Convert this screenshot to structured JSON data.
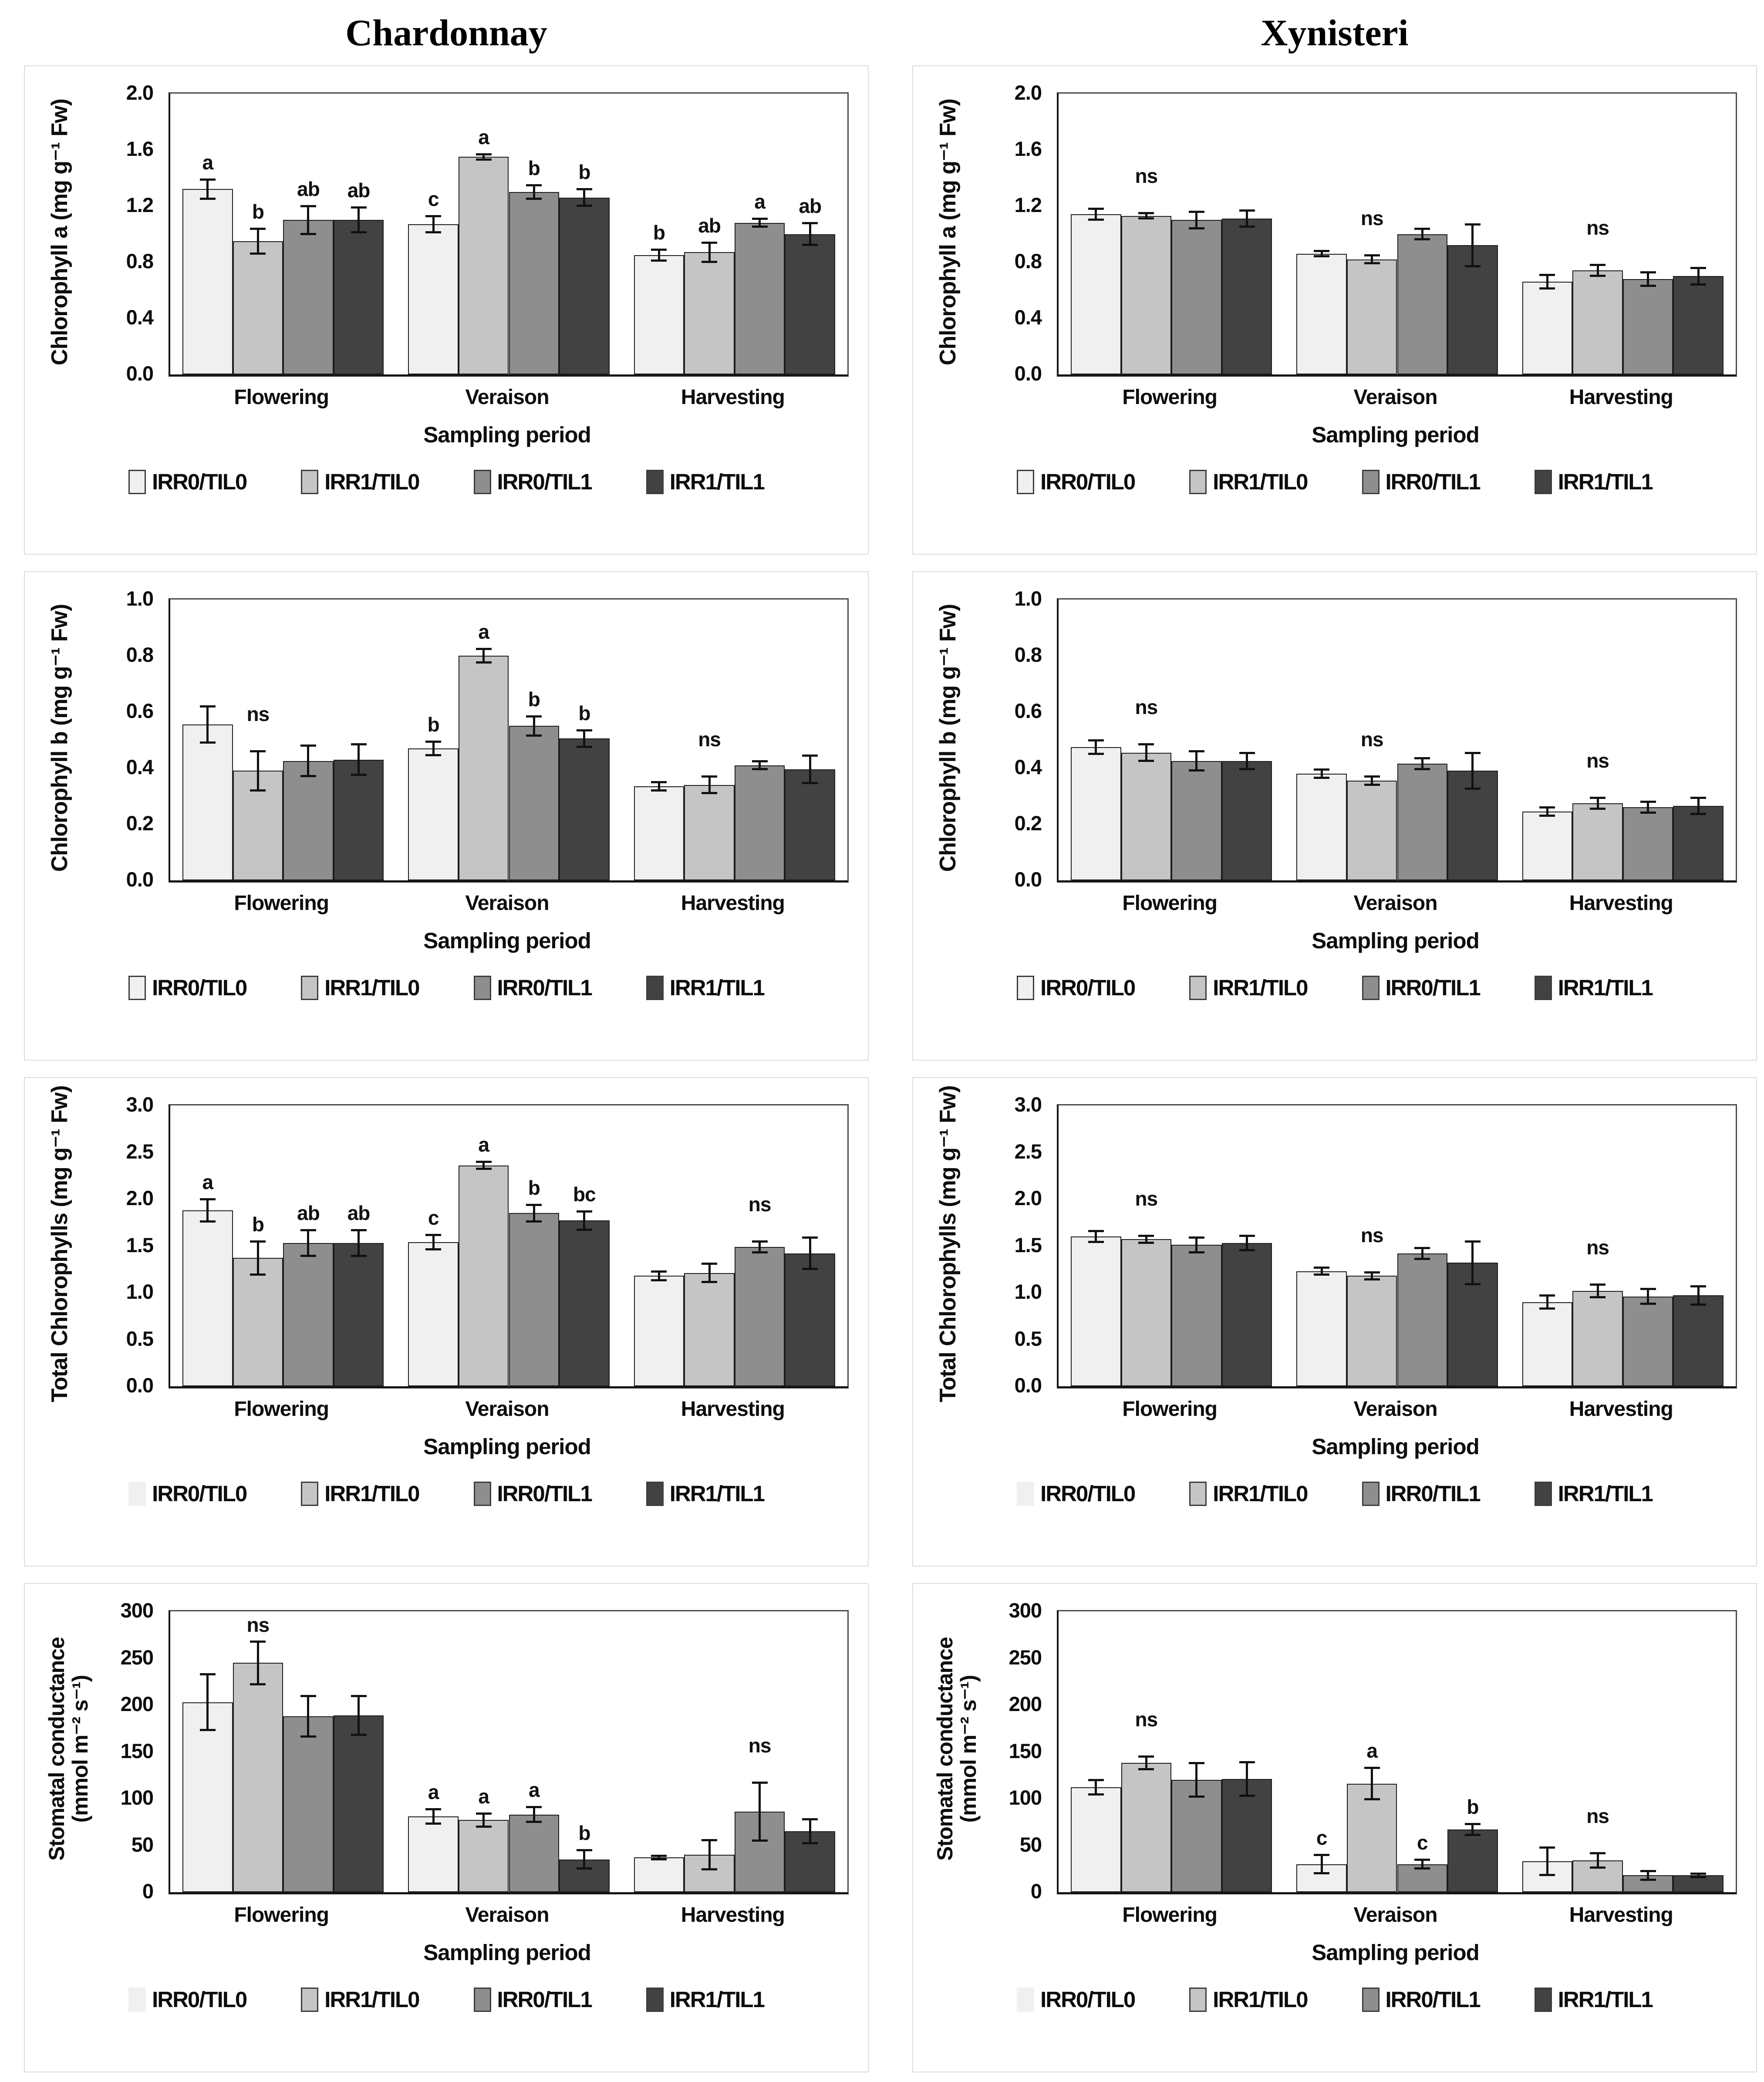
{
  "page": {
    "col_titles": [
      "Chardonnay",
      "Xynisteri"
    ]
  },
  "bar_colors": [
    "#f0f0f0",
    "#c5c5c5",
    "#8e8e8e",
    "#424242"
  ],
  "chart_data": [
    {
      "type": "bar",
      "variety": "Chardonnay",
      "ylabel": "Chlorophyll a (mg g⁻¹ Fw)",
      "xlabel": "Sampling period",
      "ylim": [
        0,
        2.0
      ],
      "ytick_step": 0.4,
      "ytick_decimals": 1,
      "categories": [
        "Flowering",
        "Veraison",
        "Harvesting"
      ],
      "series": [
        {
          "name": "IRR0/TIL0",
          "values": [
            1.32,
            1.07,
            0.85
          ],
          "errors": [
            0.07,
            0.06,
            0.04
          ]
        },
        {
          "name": "IRR1/TIL0",
          "values": [
            0.95,
            1.55,
            0.87
          ],
          "errors": [
            0.09,
            0.02,
            0.07
          ]
        },
        {
          "name": "IRR0/TIL1",
          "values": [
            1.1,
            1.3,
            1.08
          ],
          "errors": [
            0.1,
            0.05,
            0.03
          ]
        },
        {
          "name": "IRR1/TIL1",
          "values": [
            1.1,
            1.26,
            1.0
          ],
          "errors": [
            0.09,
            0.06,
            0.08
          ]
        }
      ],
      "sig": [
        {
          "letters": [
            "a",
            "b",
            "ab",
            "ab"
          ]
        },
        {
          "letters": [
            "c",
            "a",
            "b",
            "b"
          ]
        },
        {
          "letters": [
            "b",
            "ab",
            "a",
            "ab"
          ]
        }
      ],
      "legend_first_no_border": false
    },
    {
      "type": "bar",
      "variety": "Xynisteri",
      "ylabel": "Chlorophyll a (mg g⁻¹ Fw)",
      "xlabel": "Sampling period",
      "ylim": [
        0,
        2.0
      ],
      "ytick_step": 0.4,
      "ytick_decimals": 1,
      "categories": [
        "Flowering",
        "Veraison",
        "Harvesting"
      ],
      "series": [
        {
          "name": "IRR0/TIL0",
          "values": [
            1.14,
            0.86,
            0.66
          ],
          "errors": [
            0.04,
            0.02,
            0.05
          ]
        },
        {
          "name": "IRR1/TIL0",
          "values": [
            1.13,
            0.82,
            0.74
          ],
          "errors": [
            0.02,
            0.03,
            0.04
          ]
        },
        {
          "name": "IRR0/TIL1",
          "values": [
            1.1,
            1.0,
            0.68
          ],
          "errors": [
            0.06,
            0.04,
            0.05
          ]
        },
        {
          "name": "IRR1/TIL1",
          "values": [
            1.11,
            0.92,
            0.7
          ],
          "errors": [
            0.06,
            0.15,
            0.06
          ]
        }
      ],
      "sig": [
        {
          "ns": 1
        },
        {
          "ns": 1
        },
        {
          "ns": 1
        }
      ],
      "legend_first_no_border": false
    },
    {
      "type": "bar",
      "variety": "Chardonnay",
      "ylabel": "Chlorophyll b (mg g⁻¹ Fw)",
      "xlabel": "Sampling period",
      "ylim": [
        0,
        1.0
      ],
      "ytick_step": 0.2,
      "ytick_decimals": 1,
      "categories": [
        "Flowering",
        "Veraison",
        "Harvesting"
      ],
      "series": [
        {
          "name": "IRR0/TIL0",
          "values": [
            0.555,
            0.47,
            0.335
          ],
          "errors": [
            0.065,
            0.025,
            0.015
          ]
        },
        {
          "name": "IRR1/TIL0",
          "values": [
            0.39,
            0.8,
            0.34
          ],
          "errors": [
            0.07,
            0.025,
            0.03
          ]
        },
        {
          "name": "IRR0/TIL1",
          "values": [
            0.425,
            0.55,
            0.41
          ],
          "errors": [
            0.055,
            0.035,
            0.015
          ]
        },
        {
          "name": "IRR1/TIL1",
          "values": [
            0.43,
            0.505,
            0.395
          ],
          "errors": [
            0.055,
            0.03,
            0.05
          ]
        }
      ],
      "sig": [
        {
          "ns": 1
        },
        {
          "letters": [
            "b",
            "a",
            "b",
            "b"
          ]
        },
        {
          "ns": 1
        }
      ],
      "legend_first_no_border": false
    },
    {
      "type": "bar",
      "variety": "Xynisteri",
      "ylabel": "Chlorophyll b (mg g⁻¹ Fw)",
      "xlabel": "Sampling period",
      "ylim": [
        0,
        1.0
      ],
      "ytick_step": 0.2,
      "ytick_decimals": 1,
      "categories": [
        "Flowering",
        "Veraison",
        "Harvesting"
      ],
      "series": [
        {
          "name": "IRR0/TIL0",
          "values": [
            0.475,
            0.38,
            0.245
          ],
          "errors": [
            0.025,
            0.015,
            0.015
          ]
        },
        {
          "name": "IRR1/TIL0",
          "values": [
            0.455,
            0.355,
            0.275
          ],
          "errors": [
            0.03,
            0.015,
            0.02
          ]
        },
        {
          "name": "IRR0/TIL1",
          "values": [
            0.425,
            0.415,
            0.26
          ],
          "errors": [
            0.035,
            0.02,
            0.02
          ]
        },
        {
          "name": "IRR1/TIL1",
          "values": [
            0.425,
            0.39,
            0.265
          ],
          "errors": [
            0.03,
            0.065,
            0.03
          ]
        }
      ],
      "sig": [
        {
          "ns": 1
        },
        {
          "ns": 1
        },
        {
          "ns": 1
        }
      ],
      "legend_first_no_border": false
    },
    {
      "type": "bar",
      "variety": "Chardonnay",
      "ylabel": "Total Chlorophylls (mg g⁻¹ Fw)",
      "xlabel": "Sampling period",
      "ylim": [
        0,
        3.0
      ],
      "ytick_step": 0.5,
      "ytick_decimals": 1,
      "categories": [
        "Flowering",
        "Veraison",
        "Harvesting"
      ],
      "series": [
        {
          "name": "IRR0/TIL0",
          "values": [
            1.88,
            1.54,
            1.18
          ],
          "errors": [
            0.12,
            0.08,
            0.05
          ]
        },
        {
          "name": "IRR1/TIL0",
          "values": [
            1.37,
            2.36,
            1.21
          ],
          "errors": [
            0.18,
            0.04,
            0.1
          ]
        },
        {
          "name": "IRR0/TIL1",
          "values": [
            1.53,
            1.85,
            1.49
          ],
          "errors": [
            0.14,
            0.09,
            0.06
          ]
        },
        {
          "name": "IRR1/TIL1",
          "values": [
            1.53,
            1.77,
            1.42
          ],
          "errors": [
            0.14,
            0.1,
            0.17
          ]
        }
      ],
      "sig": [
        {
          "letters": [
            "a",
            "b",
            "ab",
            "ab"
          ]
        },
        {
          "letters": [
            "c",
            "a",
            "b",
            "bc"
          ]
        },
        {
          "ns": 2
        }
      ],
      "legend_first_no_border": true
    },
    {
      "type": "bar",
      "variety": "Xynisteri",
      "ylabel": "Total Chlorophylls (mg g⁻¹ Fw)",
      "xlabel": "Sampling period",
      "ylim": [
        0,
        3.0
      ],
      "ytick_step": 0.5,
      "ytick_decimals": 1,
      "categories": [
        "Flowering",
        "Veraison",
        "Harvesting"
      ],
      "series": [
        {
          "name": "IRR0/TIL0",
          "values": [
            1.6,
            1.23,
            0.9
          ],
          "errors": [
            0.06,
            0.04,
            0.07
          ]
        },
        {
          "name": "IRR1/TIL0",
          "values": [
            1.57,
            1.18,
            1.02
          ],
          "errors": [
            0.04,
            0.04,
            0.07
          ]
        },
        {
          "name": "IRR0/TIL1",
          "values": [
            1.51,
            1.42,
            0.96
          ],
          "errors": [
            0.08,
            0.06,
            0.08
          ]
        },
        {
          "name": "IRR1/TIL1",
          "values": [
            1.53,
            1.32,
            0.97
          ],
          "errors": [
            0.08,
            0.23,
            0.1
          ]
        }
      ],
      "sig": [
        {
          "ns": 1
        },
        {
          "ns": 1
        },
        {
          "ns": 1
        }
      ],
      "legend_first_no_border": true
    },
    {
      "type": "bar",
      "variety": "Chardonnay",
      "ylabel": "Stomatal conductance\n(mmol m⁻² s⁻¹)",
      "xlabel": "Sampling period",
      "ylim": [
        0,
        300
      ],
      "ytick_step": 50,
      "ytick_decimals": 0,
      "categories": [
        "Flowering",
        "Veraison",
        "Harvesting"
      ],
      "series": [
        {
          "name": "IRR0/TIL0",
          "values": [
            203,
            81,
            37
          ],
          "errors": [
            30,
            8,
            2
          ]
        },
        {
          "name": "IRR1/TIL0",
          "values": [
            245,
            77,
            40
          ],
          "errors": [
            23,
            7,
            16
          ]
        },
        {
          "name": "IRR0/TIL1",
          "values": [
            188,
            83,
            86
          ],
          "errors": [
            22,
            8,
            31
          ]
        },
        {
          "name": "IRR1/TIL1",
          "values": [
            189,
            35,
            65
          ],
          "errors": [
            21,
            10,
            13
          ]
        }
      ],
      "sig": [
        {
          "ns": 1
        },
        {
          "letters": [
            "a",
            "a",
            "a",
            "b"
          ]
        },
        {
          "ns": 2
        }
      ],
      "legend_first_no_border": true
    },
    {
      "type": "bar",
      "variety": "Xynisteri",
      "ylabel": "Stomatal conductance\n(mmol m⁻² s⁻¹)",
      "xlabel": "Sampling period",
      "ylim": [
        0,
        300
      ],
      "ytick_step": 50,
      "ytick_decimals": 0,
      "categories": [
        "Flowering",
        "Veraison",
        "Harvesting"
      ],
      "series": [
        {
          "name": "IRR0/TIL0",
          "values": [
            112,
            30,
            33
          ],
          "errors": [
            8,
            10,
            15
          ]
        },
        {
          "name": "IRR1/TIL0",
          "values": [
            138,
            116,
            34
          ],
          "errors": [
            7,
            17,
            8
          ]
        },
        {
          "name": "IRR0/TIL1",
          "values": [
            120,
            30,
            18
          ],
          "errors": [
            18,
            5,
            5
          ]
        },
        {
          "name": "IRR1/TIL1",
          "values": [
            121,
            67,
            18
          ],
          "errors": [
            18,
            6,
            2
          ]
        }
      ],
      "sig": [
        {
          "ns": 1
        },
        {
          "letters": [
            "c",
            "a",
            "c",
            "b"
          ]
        },
        {
          "ns": 1
        }
      ],
      "legend_first_no_border": true
    }
  ]
}
